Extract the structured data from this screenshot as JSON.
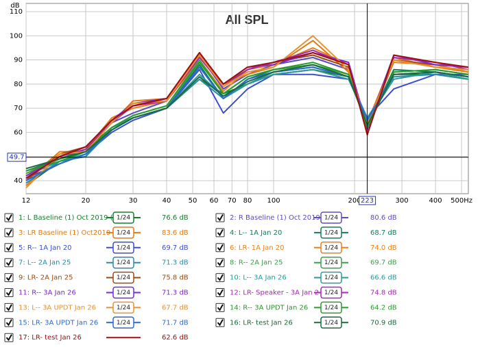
{
  "chart_data": {
    "type": "line",
    "title": "All SPL",
    "y_label": "dB",
    "x_scale": "log",
    "grid": true,
    "xlim": [
      12,
      530
    ],
    "ylim": [
      34.6,
      113.4
    ],
    "xticks": [
      12,
      20,
      30,
      40,
      50,
      60,
      70,
      80,
      100,
      200,
      300,
      400,
      {
        "value": 500,
        "label": "500Hz"
      }
    ],
    "yticks": [
      40,
      50,
      60,
      70,
      80,
      90,
      100,
      110
    ],
    "cursor": {
      "x": 223,
      "y": 49.7
    },
    "x": [
      12,
      16,
      20,
      25,
      30,
      40,
      53,
      65,
      80,
      100,
      140,
      190,
      223,
      280,
      400,
      530
    ],
    "series": [
      {
        "name": "1: L Baseline (1) Oct 2019 (",
        "color": "#1b7a2e",
        "smoothing": "1/24",
        "cursor_value": 76.6,
        "cursor_label": "76.6 dB",
        "values": [
          38,
          48,
          50,
          62,
          66,
          70,
          82,
          76,
          80,
          84,
          86,
          83,
          65,
          84,
          84,
          82
        ]
      },
      {
        "name": "2: R Baseline (1) Oct 2019 (",
        "color": "#5b4bc4",
        "smoothing": "1/24",
        "cursor_value": 80.6,
        "cursor_label": "80.6 dB",
        "values": [
          42,
          50,
          54,
          64,
          68,
          73,
          92,
          78,
          84,
          88,
          91,
          86,
          62,
          90,
          87,
          86
        ]
      },
      {
        "name": "3: LR Baseline (1) Oct2019",
        "color": "#e07a10",
        "smoothing": "1/24",
        "cursor_value": 83.6,
        "cursor_label": "83.6 dB",
        "values": [
          40,
          52,
          52,
          64,
          73,
          74,
          93,
          80,
          84,
          87,
          98,
          85,
          64,
          91,
          87,
          85
        ]
      },
      {
        "name": "4: L-- 1A Jan 20",
        "color": "#167a5a",
        "smoothing": "1/24",
        "cursor_value": 68.7,
        "cursor_label": "68.7 dB",
        "values": [
          44,
          49,
          53,
          62,
          66,
          70,
          88,
          74,
          82,
          86,
          88,
          84,
          63,
          86,
          85,
          83
        ]
      },
      {
        "name": "5: R-- 1A Jan 20",
        "color": "#3a4fd0",
        "smoothing": "1/24",
        "cursor_value": 69.7,
        "cursor_label": "69.7 dB",
        "values": [
          41,
          47,
          51,
          60,
          65,
          70,
          86,
          68,
          78,
          84,
          84,
          82,
          66,
          78,
          84,
          84
        ]
      },
      {
        "name": "6: LR- 1A Jan 20",
        "color": "#e8801a",
        "smoothing": "1/24",
        "cursor_value": 74.0,
        "cursor_label": "74.0 dB",
        "values": [
          38,
          50,
          53,
          66,
          70,
          73,
          90,
          77,
          86,
          88,
          95,
          88,
          63,
          89,
          88,
          85
        ]
      },
      {
        "name": "7: L-- 2A Jan 25",
        "color": "#2a8aa8",
        "smoothing": "1/24",
        "cursor_value": 71.3,
        "cursor_label": "71.3 dB",
        "values": [
          39,
          48,
          50,
          61,
          66,
          70,
          82,
          74,
          80,
          85,
          87,
          83,
          66,
          83,
          84,
          82
        ]
      },
      {
        "name": "8: R-- 2A Jan 25",
        "color": "#3aa04a",
        "smoothing": "1/24",
        "cursor_value": 69.7,
        "cursor_label": "69.7 dB",
        "values": [
          43,
          49,
          52,
          62,
          67,
          71,
          90,
          76,
          83,
          86,
          88,
          84,
          62,
          85,
          86,
          84
        ]
      },
      {
        "name": "9: LR- 2A Jan 25",
        "color": "#9a4a10",
        "smoothing": "1/24",
        "cursor_value": 75.8,
        "cursor_label": "75.8 dB",
        "values": [
          40,
          51,
          54,
          65,
          71,
          74,
          93,
          80,
          86,
          89,
          92,
          87,
          61,
          90,
          88,
          87
        ]
      },
      {
        "name": "10: L-- 3A Jan 26",
        "color": "#2a9a9a",
        "smoothing": "1/24",
        "cursor_value": 66.6,
        "cursor_label": "66.6 dB",
        "values": [
          42,
          48,
          51,
          62,
          66,
          70,
          84,
          75,
          80,
          84,
          86,
          82,
          65,
          82,
          85,
          82
        ]
      },
      {
        "name": "11: R-- 3A Jan 26",
        "color": "#7a2ac8",
        "smoothing": "1/24",
        "cursor_value": 71.3,
        "cursor_label": "71.3 dB",
        "values": [
          41,
          50,
          54,
          65,
          72,
          74,
          92,
          80,
          87,
          88,
          93,
          89,
          62,
          92,
          88,
          87
        ]
      },
      {
        "name": "12: LR- Speaker - 3A Jan 2",
        "color": "#a02ab0",
        "smoothing": "1/24",
        "cursor_value": 74.8,
        "cursor_label": "74.8 dB",
        "values": [
          42,
          50,
          53,
          64,
          71,
          73,
          91,
          79,
          86,
          89,
          94,
          88,
          61,
          91,
          89,
          86
        ]
      },
      {
        "name": "13: L-- 3A UPDT Jan 26",
        "color": "#e89030",
        "smoothing": "1/24",
        "cursor_value": 67.7,
        "cursor_label": "67.7 dB",
        "values": [
          37,
          51,
          52,
          64,
          72,
          73,
          92,
          79,
          85,
          87,
          100,
          86,
          63,
          90,
          87,
          86
        ]
      },
      {
        "name": "14: R-- 3A UPDT Jan 26",
        "color": "#2a9a2a",
        "smoothing": "1/24",
        "cursor_value": 64.2,
        "cursor_label": "64.2 dB",
        "values": [
          44,
          48,
          52,
          62,
          67,
          71,
          89,
          76,
          83,
          86,
          89,
          84,
          62,
          85,
          86,
          84
        ]
      },
      {
        "name": "15: LR- 3A UPDT Jan 26",
        "color": "#2a6ad0",
        "smoothing": "1/24",
        "cursor_value": 71.7,
        "cursor_label": "71.7 dB",
        "values": [
          40,
          47,
          51,
          61,
          66,
          70,
          87,
          74,
          82,
          85,
          87,
          83,
          65,
          84,
          85,
          83
        ]
      },
      {
        "name": "16: LR- test Jan 26",
        "color": "#1a6a3a",
        "smoothing": "1/24",
        "cursor_value": 70.9,
        "cursor_label": "70.9 dB",
        "values": [
          45,
          49,
          52,
          61,
          66,
          70,
          83,
          75,
          81,
          85,
          88,
          83,
          63,
          84,
          85,
          83
        ]
      },
      {
        "name": "17: LR- test Jan 26",
        "color": "#a01010",
        "cursor_value": 62.6,
        "cursor_label": "62.6 dB",
        "values": [
          41,
          50,
          54,
          65,
          71,
          74,
          93,
          80,
          87,
          89,
          93,
          88,
          59,
          92,
          89,
          87
        ]
      }
    ]
  }
}
